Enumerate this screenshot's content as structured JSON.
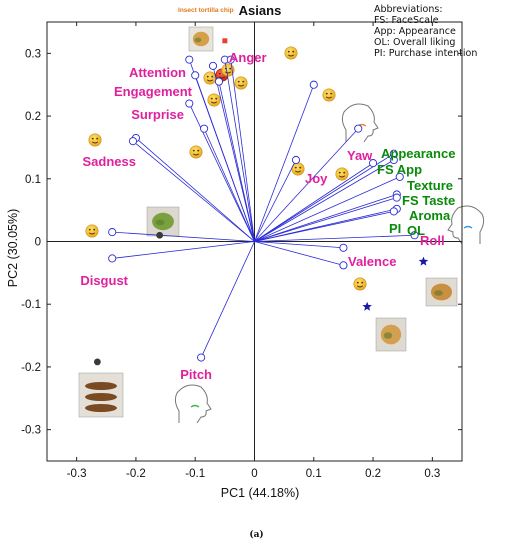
{
  "abbreviations": {
    "heading": "Abbreviations:",
    "items": [
      "FS: FaceScale",
      "App: Appearance",
      "OL: Overall liking",
      "PI: Purchase intention"
    ]
  },
  "caption": "(a)",
  "colors": {
    "vector": "#2b2bd6",
    "emotion_label": "#e0209e",
    "sensory_label": "#0a8a0a",
    "sample_marker": "#3a3a3a",
    "star_marker": "#1a1aa8",
    "chip_label": "#e07a1a",
    "face": "#f7c531",
    "angry_face": "#e8432e"
  },
  "chart_data": {
    "type": "scatter",
    "title": "Asians",
    "xlabel": "PC1 (44.18%)",
    "ylabel": "PC2 (30.05%)",
    "xlim": [
      -0.35,
      0.35
    ],
    "ylim": [
      -0.35,
      0.35
    ],
    "xticks": [
      -0.3,
      -0.2,
      -0.1,
      0,
      0.1,
      0.2,
      0.3
    ],
    "yticks": [
      -0.3,
      -0.2,
      -0.1,
      0,
      0.1,
      0.2,
      0.3
    ],
    "grid": false,
    "legend": "none",
    "loadings": [
      {
        "label": "Anger",
        "x": -0.05,
        "y": 0.29,
        "group": "emotion"
      },
      {
        "label": "Attention",
        "x": -0.11,
        "y": 0.29,
        "group": "emotion"
      },
      {
        "label": "",
        "x": -0.04,
        "y": 0.29,
        "group": "emotion"
      },
      {
        "label": "",
        "x": -0.07,
        "y": 0.28,
        "group": "emotion"
      },
      {
        "label": "Engagement",
        "x": -0.1,
        "y": 0.265,
        "group": "emotion"
      },
      {
        "label": "",
        "x": -0.06,
        "y": 0.255,
        "group": "emotion"
      },
      {
        "label": "Surprise",
        "x": -0.11,
        "y": 0.22,
        "group": "emotion"
      },
      {
        "label": "",
        "x": -0.085,
        "y": 0.18,
        "group": "emotion"
      },
      {
        "label": "",
        "x": -0.2,
        "y": 0.165,
        "group": "emotion"
      },
      {
        "label": "Sadness",
        "x": -0.205,
        "y": 0.16,
        "group": "emotion"
      },
      {
        "label": "",
        "x": -0.24,
        "y": 0.015,
        "group": "emotion"
      },
      {
        "label": "Disgust",
        "x": -0.24,
        "y": -0.027,
        "group": "emotion"
      },
      {
        "label": "Pitch",
        "x": -0.09,
        "y": -0.185,
        "group": "emotion"
      },
      {
        "label": "",
        "x": 0.1,
        "y": 0.25,
        "group": "emotion"
      },
      {
        "label": "Yaw",
        "x": 0.175,
        "y": 0.18,
        "group": "emotion"
      },
      {
        "label": "Joy",
        "x": 0.07,
        "y": 0.13,
        "group": "emotion"
      },
      {
        "label": "Appearance",
        "x": 0.235,
        "y": 0.14,
        "group": "sensory"
      },
      {
        "label": "FS App",
        "x": 0.235,
        "y": 0.13,
        "group": "sensory"
      },
      {
        "label": "",
        "x": 0.2,
        "y": 0.125,
        "group": "sensory"
      },
      {
        "label": "Texture",
        "x": 0.245,
        "y": 0.103,
        "group": "sensory"
      },
      {
        "label": "FS Taste",
        "x": 0.24,
        "y": 0.075,
        "group": "sensory"
      },
      {
        "label": "Aroma",
        "x": 0.24,
        "y": 0.07,
        "group": "sensory"
      },
      {
        "label": "OL",
        "x": 0.24,
        "y": 0.052,
        "group": "sensory"
      },
      {
        "label": "PI",
        "x": 0.235,
        "y": 0.048,
        "group": "sensory"
      },
      {
        "label": "Roll",
        "x": 0.27,
        "y": 0.01,
        "group": "emotion"
      },
      {
        "label": "",
        "x": 0.15,
        "y": -0.01,
        "group": "emotion"
      },
      {
        "label": "Valence",
        "x": 0.15,
        "y": -0.038,
        "group": "emotion"
      }
    ],
    "samples": [
      {
        "label": "Insect tortilla chip",
        "x": -0.05,
        "y": 0.32,
        "marker": "square"
      },
      {
        "label": "",
        "x": -0.16,
        "y": 0.01,
        "marker": "dot"
      },
      {
        "label": "",
        "x": -0.265,
        "y": -0.192,
        "marker": "dot"
      },
      {
        "label": "",
        "x": 0.285,
        "y": -0.032,
        "marker": "star"
      },
      {
        "label": "",
        "x": 0.19,
        "y": -0.104,
        "marker": "star"
      }
    ]
  }
}
